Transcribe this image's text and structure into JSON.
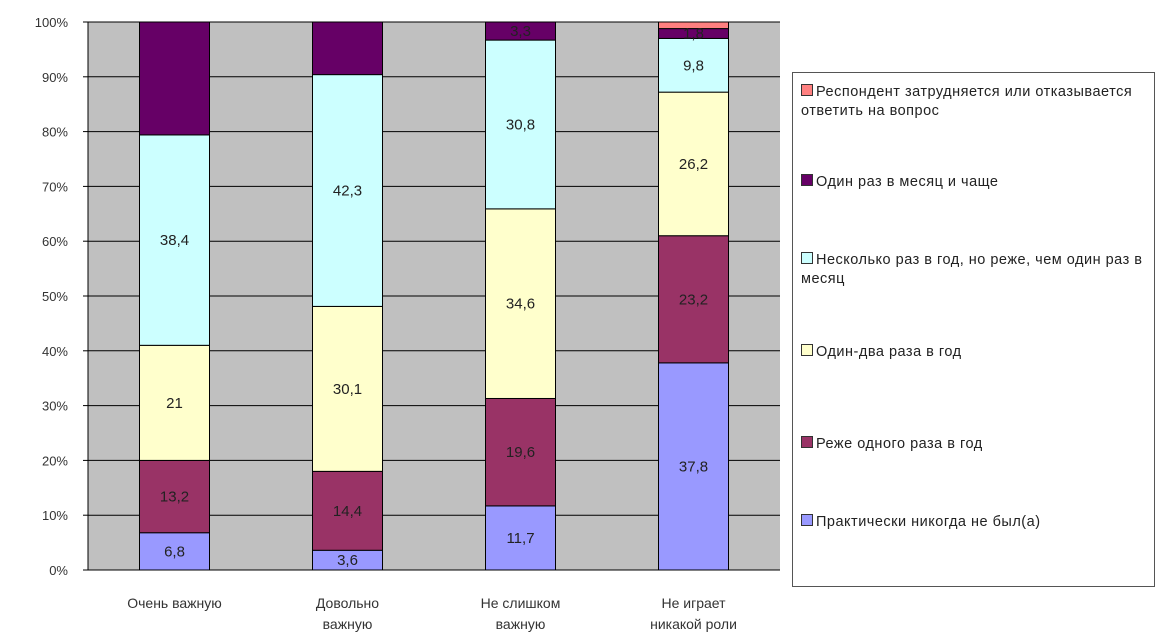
{
  "chart_data": {
    "type": "bar",
    "stacked": "percent",
    "categories": [
      [
        "Очень важную"
      ],
      [
        "Довольно",
        "важную"
      ],
      [
        "Не слишком",
        "важную"
      ],
      [
        "Не играет",
        "никакой роли"
      ]
    ],
    "y_ticks": [
      "0%",
      "10%",
      "20%",
      "30%",
      "40%",
      "50%",
      "60%",
      "70%",
      "80%",
      "90%",
      "100%"
    ],
    "ylim": [
      0,
      100
    ],
    "grid": true,
    "legend_position": "right",
    "series": [
      {
        "name": "Практически никогда не был(а)",
        "color": "#9999ff",
        "values": [
          6.8,
          3.6,
          11.7,
          37.8
        ],
        "labels": [
          "6,8",
          "3,6",
          "11,7",
          "37,8"
        ]
      },
      {
        "name": "Реже одного раза в год",
        "color": "#993366",
        "values": [
          13.2,
          14.4,
          19.6,
          23.2
        ],
        "labels": [
          "13,2",
          "14,4",
          "19,6",
          "23,2"
        ]
      },
      {
        "name": "Один-два раза в год",
        "color": "#ffffcc",
        "values": [
          21,
          30.1,
          34.6,
          26.2
        ],
        "labels": [
          "21",
          "30,1",
          "34,6",
          "26,2"
        ]
      },
      {
        "name": "Несколько раз в год, но реже, чем один раз в месяц",
        "color": "#ccffff",
        "values": [
          38.4,
          42.3,
          30.8,
          9.8
        ],
        "labels": [
          "38,4",
          "42,3",
          "30,8",
          "9,8"
        ]
      },
      {
        "name": "Один раз в месяц и чаще",
        "color": "#660066",
        "values": [
          20.6,
          9.6,
          3.3,
          1.8
        ],
        "labels": [
          "",
          "",
          "3,3",
          "1,8"
        ]
      },
      {
        "name": "Респондент затрудняется или отказывается ответить на вопрос",
        "color": "#ff8080",
        "values": [
          0,
          0,
          0,
          1.2
        ],
        "labels": [
          "",
          "",
          "",
          ""
        ]
      }
    ]
  }
}
